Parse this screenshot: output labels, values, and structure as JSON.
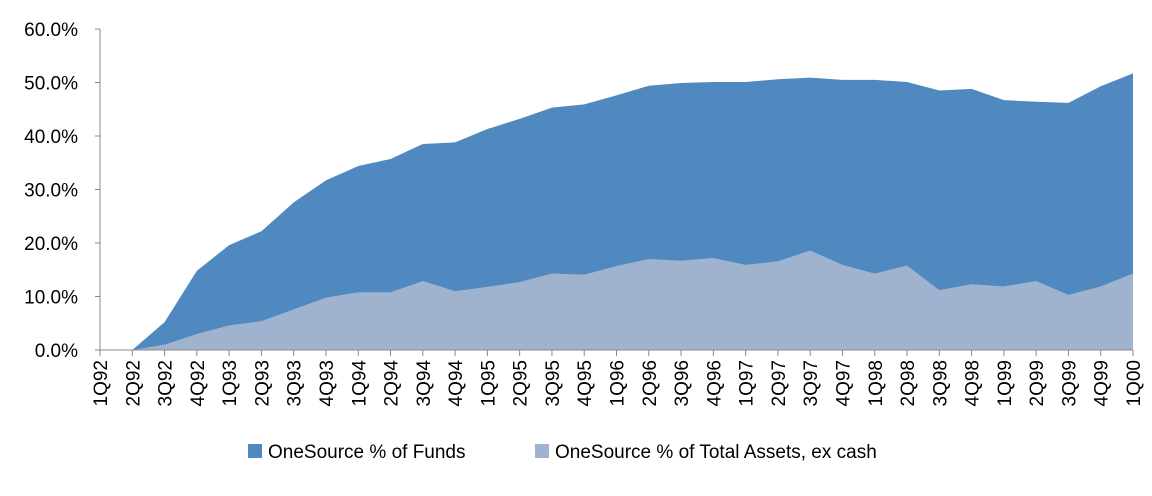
{
  "chart_data": {
    "type": "area",
    "categories": [
      "1Q92",
      "2Q92",
      "3Q92",
      "4Q92",
      "1Q93",
      "2Q93",
      "3Q93",
      "4Q93",
      "1Q94",
      "2Q94",
      "3Q94",
      "4Q94",
      "1Q95",
      "2Q95",
      "3Q95",
      "4Q95",
      "1Q96",
      "2Q96",
      "3Q96",
      "4Q96",
      "1Q97",
      "2Q97",
      "3Q97",
      "4Q97",
      "1Q98",
      "2Q98",
      "3Q98",
      "4Q98",
      "1Q99",
      "2Q99",
      "3Q99",
      "4Q99",
      "1Q00"
    ],
    "series": [
      {
        "name": "OneSource % of Funds",
        "color": "#4f89c0",
        "values": [
          null,
          0,
          5.2,
          14.8,
          19.6,
          22.2,
          27.6,
          31.7,
          34.4,
          35.7,
          38.5,
          38.8,
          41.3,
          43.2,
          45.3,
          45.9,
          47.6,
          49.4,
          49.9,
          50.1,
          50.1,
          50.6,
          50.9,
          50.5,
          50.5,
          50.1,
          48.5,
          48.8,
          46.7,
          46.4,
          46.2,
          49.3,
          51.7
        ]
      },
      {
        "name": "OneSource % of Total Assets, ex cash",
        "color": "#9fb2ce",
        "values": [
          null,
          0,
          1.0,
          3.0,
          4.6,
          5.4,
          7.6,
          9.8,
          10.8,
          10.8,
          12.9,
          11.0,
          11.8,
          12.7,
          14.3,
          14.1,
          15.7,
          17.0,
          16.7,
          17.2,
          15.9,
          16.6,
          18.6,
          15.9,
          14.3,
          15.8,
          11.2,
          12.3,
          11.9,
          12.9,
          10.3,
          11.9,
          14.3
        ]
      }
    ],
    "ylim": [
      0,
      60
    ],
    "yticks": [
      {
        "value": 0,
        "label": "0.0%"
      },
      {
        "value": 10,
        "label": "10.0%"
      },
      {
        "value": 20,
        "label": "20.0%"
      },
      {
        "value": 30,
        "label": "30.0%"
      },
      {
        "value": 40,
        "label": "40.0%"
      },
      {
        "value": 50,
        "label": "50.0%"
      },
      {
        "value": 60,
        "label": "60.0%"
      }
    ],
    "legend": "bottom"
  }
}
